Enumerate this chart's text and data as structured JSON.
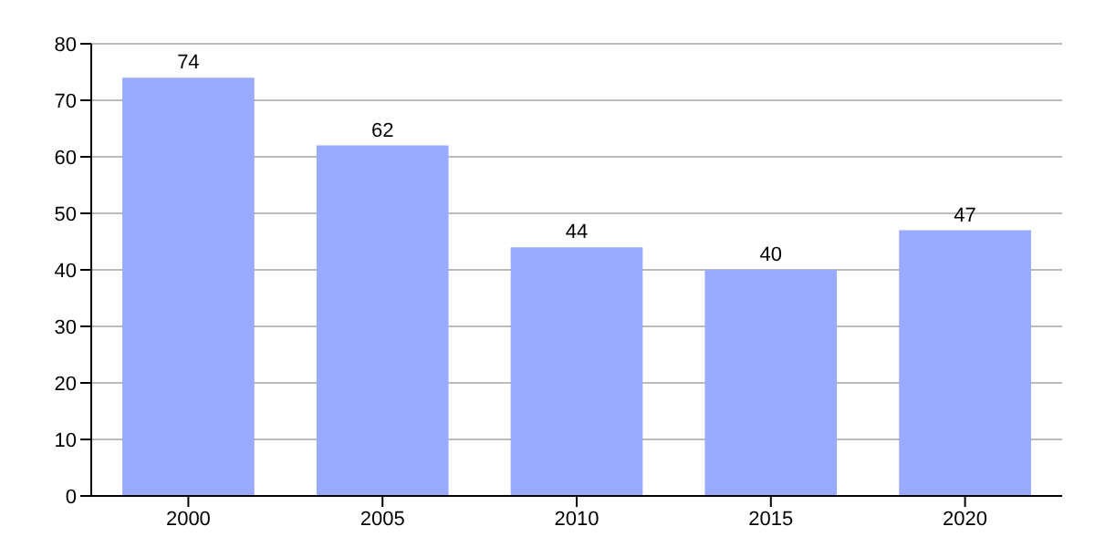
{
  "chart_data": {
    "type": "bar",
    "categories": [
      "2000",
      "2005",
      "2010",
      "2015",
      "2020"
    ],
    "values": [
      74,
      62,
      44,
      40,
      47
    ],
    "color": "#99aaff",
    "ylim": [
      0,
      80
    ],
    "yticks": [
      0,
      10,
      20,
      30,
      40,
      50,
      60,
      70,
      80
    ],
    "grid": "y",
    "data_labels": true
  }
}
